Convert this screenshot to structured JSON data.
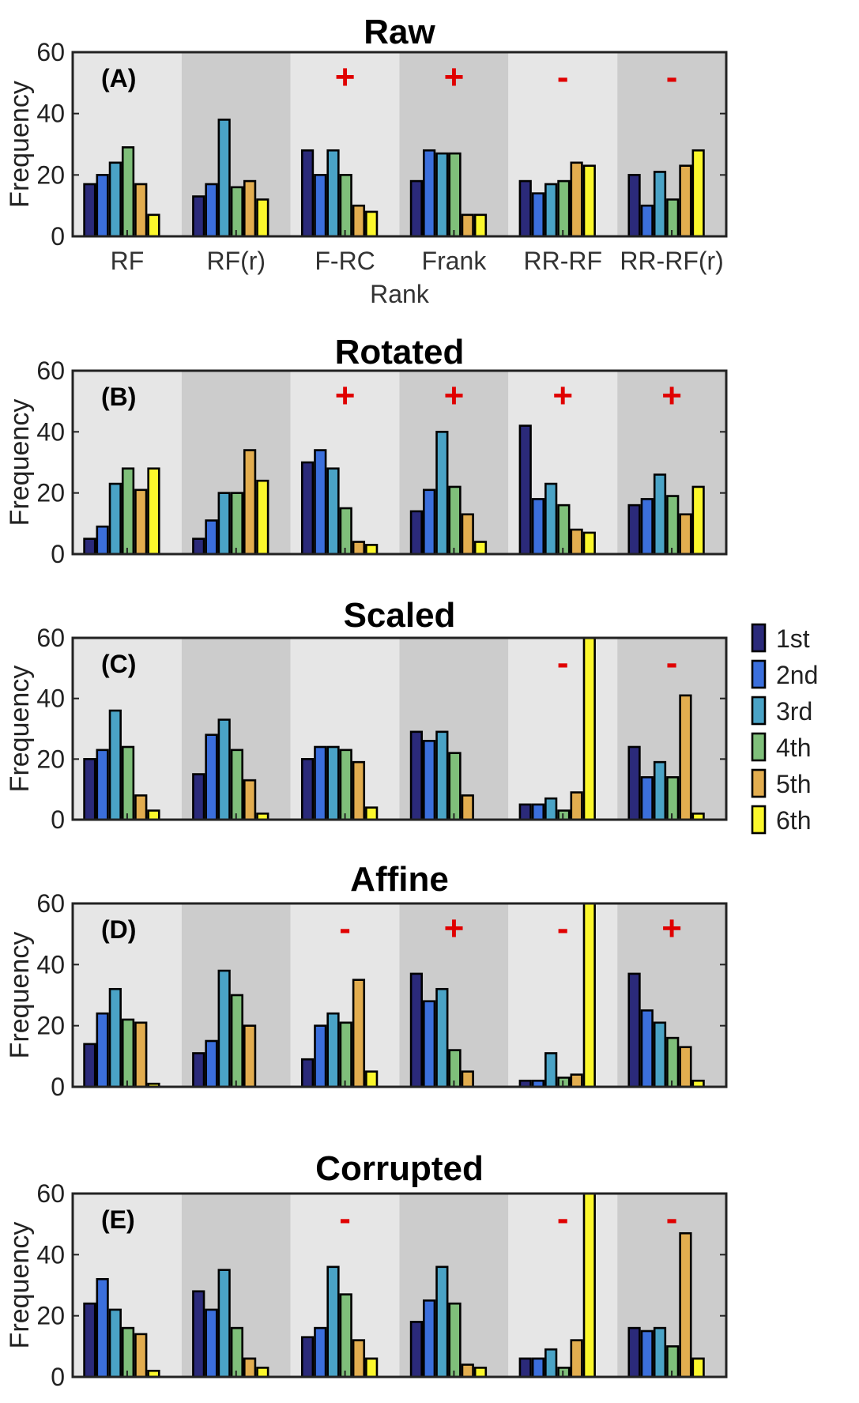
{
  "chart_data": [
    {
      "type": "bar",
      "title": "Raw",
      "panel_label": "(A)",
      "categories": [
        "RF",
        "RF(r)",
        "F-RC",
        "Frank",
        "RR-RF",
        "RR-RF(r)"
      ],
      "xlabel": "Rank",
      "ylabel": "Frequency",
      "ylim": [
        0,
        60
      ],
      "yticks": [
        0,
        20,
        40,
        60
      ],
      "show_xticklabels": true,
      "markers": [
        "",
        "",
        "+",
        "+",
        "-",
        "-"
      ],
      "series": [
        {
          "name": "1st",
          "values": [
            17,
            13,
            28,
            18,
            18,
            20
          ]
        },
        {
          "name": "2nd",
          "values": [
            20,
            17,
            20,
            28,
            14,
            10
          ]
        },
        {
          "name": "3rd",
          "values": [
            24,
            38,
            28,
            27,
            17,
            21
          ]
        },
        {
          "name": "4th",
          "values": [
            29,
            16,
            20,
            27,
            18,
            12
          ]
        },
        {
          "name": "5th",
          "values": [
            17,
            18,
            10,
            7,
            24,
            23
          ]
        },
        {
          "name": "6th",
          "values": [
            7,
            12,
            8,
            7,
            23,
            28
          ]
        }
      ]
    },
    {
      "type": "bar",
      "title": "Rotated",
      "panel_label": "(B)",
      "categories": [
        "RF",
        "RF(r)",
        "F-RC",
        "Frank",
        "RR-RF",
        "RR-RF(r)"
      ],
      "xlabel": "",
      "ylabel": "Frequency",
      "ylim": [
        0,
        60
      ],
      "yticks": [
        0,
        20,
        40,
        60
      ],
      "show_xticklabels": false,
      "markers": [
        "",
        "",
        "+",
        "+",
        "+",
        "+"
      ],
      "series": [
        {
          "name": "1st",
          "values": [
            5,
            5,
            30,
            14,
            42,
            16
          ]
        },
        {
          "name": "2nd",
          "values": [
            9,
            11,
            34,
            21,
            18,
            18
          ]
        },
        {
          "name": "3rd",
          "values": [
            23,
            20,
            28,
            40,
            23,
            26
          ]
        },
        {
          "name": "4th",
          "values": [
            28,
            20,
            15,
            22,
            16,
            19
          ]
        },
        {
          "name": "5th",
          "values": [
            21,
            34,
            4,
            13,
            8,
            13
          ]
        },
        {
          "name": "6th",
          "values": [
            28,
            24,
            3,
            4,
            7,
            22
          ]
        }
      ]
    },
    {
      "type": "bar",
      "title": "Scaled",
      "panel_label": "(C)",
      "categories": [
        "RF",
        "RF(r)",
        "F-RC",
        "Frank",
        "RR-RF",
        "RR-RF(r)"
      ],
      "xlabel": "",
      "ylabel": "Frequency",
      "ylim": [
        0,
        60
      ],
      "yticks": [
        0,
        20,
        40,
        60
      ],
      "show_xticklabels": false,
      "markers": [
        "",
        "",
        "",
        "",
        "-",
        "-"
      ],
      "series": [
        {
          "name": "1st",
          "values": [
            20,
            15,
            20,
            29,
            5,
            24
          ]
        },
        {
          "name": "2nd",
          "values": [
            23,
            28,
            24,
            26,
            5,
            14
          ]
        },
        {
          "name": "3rd",
          "values": [
            36,
            33,
            24,
            29,
            7,
            19
          ]
        },
        {
          "name": "4th",
          "values": [
            24,
            23,
            23,
            22,
            3,
            14
          ]
        },
        {
          "name": "5th",
          "values": [
            8,
            13,
            19,
            8,
            9,
            41
          ]
        },
        {
          "name": "6th",
          "values": [
            3,
            2,
            4,
            0,
            60,
            2
          ]
        }
      ]
    },
    {
      "type": "bar",
      "title": "Affine",
      "panel_label": "(D)",
      "categories": [
        "RF",
        "RF(r)",
        "F-RC",
        "Frank",
        "RR-RF",
        "RR-RF(r)"
      ],
      "xlabel": "",
      "ylabel": "Frequency",
      "ylim": [
        0,
        60
      ],
      "yticks": [
        0,
        20,
        40,
        60
      ],
      "show_xticklabels": false,
      "markers": [
        "",
        "",
        "-",
        "+",
        "-",
        "+"
      ],
      "series": [
        {
          "name": "1st",
          "values": [
            14,
            11,
            9,
            37,
            2,
            37
          ]
        },
        {
          "name": "2nd",
          "values": [
            24,
            15,
            20,
            28,
            2,
            25
          ]
        },
        {
          "name": "3rd",
          "values": [
            32,
            38,
            24,
            32,
            11,
            21
          ]
        },
        {
          "name": "4th",
          "values": [
            22,
            30,
            21,
            12,
            3,
            16
          ]
        },
        {
          "name": "5th",
          "values": [
            21,
            20,
            35,
            5,
            4,
            13
          ]
        },
        {
          "name": "6th",
          "values": [
            1,
            0,
            5,
            0,
            60,
            2
          ]
        }
      ]
    },
    {
      "type": "bar",
      "title": "Corrupted",
      "panel_label": "(E)",
      "categories": [
        "RF",
        "RF(r)",
        "F-RC",
        "Frank",
        "RR-RF",
        "RR-RF(r)"
      ],
      "xlabel": "",
      "ylabel": "Frequency",
      "ylim": [
        0,
        60
      ],
      "yticks": [
        0,
        20,
        40,
        60
      ],
      "show_xticklabels": false,
      "markers": [
        "",
        "",
        "-",
        "",
        "-",
        "-"
      ],
      "series": [
        {
          "name": "1st",
          "values": [
            24,
            28,
            13,
            18,
            6,
            16
          ]
        },
        {
          "name": "2nd",
          "values": [
            32,
            22,
            16,
            25,
            6,
            15
          ]
        },
        {
          "name": "3rd",
          "values": [
            22,
            35,
            36,
            36,
            9,
            16
          ]
        },
        {
          "name": "4th",
          "values": [
            16,
            16,
            27,
            24,
            3,
            10
          ]
        },
        {
          "name": "5th",
          "values": [
            14,
            6,
            12,
            4,
            12,
            47
          ]
        },
        {
          "name": "6th",
          "values": [
            2,
            3,
            6,
            3,
            60,
            6
          ]
        }
      ]
    }
  ],
  "legend": {
    "placement": "right",
    "entries": [
      "1st",
      "2nd",
      "3rd",
      "4th",
      "5th",
      "6th"
    ]
  },
  "colors": {
    "series": [
      "#2b2a7a",
      "#3b6fdc",
      "#4aa3c6",
      "#7fbf7a",
      "#e2ad4f",
      "#fbf72c"
    ],
    "band_light": "#e6e6e6",
    "band_dark": "#cccccc",
    "marker": "#e00000"
  }
}
